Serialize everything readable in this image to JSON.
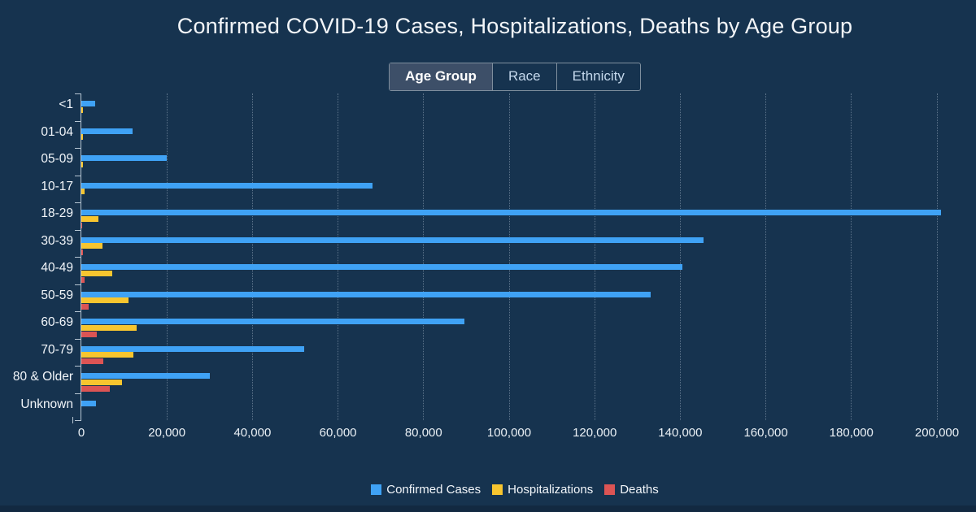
{
  "page": {
    "background_color": "#122941",
    "panel_color": "#16334F"
  },
  "title": "Confirmed COVID-19 Cases, Hospitalizations, Deaths by Age Group",
  "tabs": {
    "items": [
      {
        "label": "Age Group",
        "selected": true
      },
      {
        "label": "Race",
        "selected": false
      },
      {
        "label": "Ethnicity",
        "selected": false
      }
    ]
  },
  "legend": {
    "items": [
      {
        "label": "Confirmed Cases",
        "color": "#3FA2F5"
      },
      {
        "label": "Hospitalizations",
        "color": "#F7C52F"
      },
      {
        "label": "Deaths",
        "color": "#DC5454"
      }
    ]
  },
  "chart_data": {
    "type": "bar",
    "orientation": "horizontal",
    "title": "Confirmed COVID-19 Cases, Hospitalizations, Deaths by Age Group",
    "categories": [
      "<1",
      "01-04",
      "05-09",
      "10-17",
      "18-29",
      "30-39",
      "40-49",
      "50-59",
      "60-69",
      "70-79",
      "80 & Older",
      "Unknown"
    ],
    "series": [
      {
        "name": "Confirmed Cases",
        "color": "#3FA2F5",
        "values": [
          3200,
          12000,
          20000,
          68000,
          201000,
          145500,
          140500,
          133000,
          89500,
          52000,
          30000,
          3500
        ]
      },
      {
        "name": "Hospitalizations",
        "color": "#F7C52F",
        "values": [
          300,
          400,
          400,
          800,
          3900,
          5000,
          7300,
          11100,
          13000,
          12200,
          9500,
          0
        ]
      },
      {
        "name": "Deaths",
        "color": "#DC5454",
        "values": [
          0,
          0,
          0,
          0,
          100,
          400,
          800,
          1700,
          3600,
          5100,
          6700,
          0
        ]
      }
    ],
    "xlim": [
      0,
      200000
    ],
    "x_ticks": [
      0,
      20000,
      40000,
      60000,
      80000,
      100000,
      120000,
      140000,
      160000,
      180000,
      200000
    ],
    "x_tick_labels": [
      "0",
      "20,000",
      "40,000",
      "60,000",
      "80,000",
      "100,000",
      "120,000",
      "140,000",
      "160,000",
      "180,000",
      "200,000"
    ],
    "grid": "dotted-vertical",
    "legend_position": "bottom"
  }
}
